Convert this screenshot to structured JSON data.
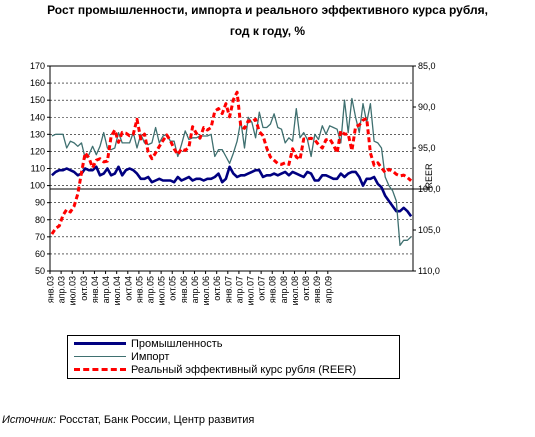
{
  "chart_data": {
    "type": "line",
    "title_line1": "Рост промышленности, импорта и реального эффективного курса рубля,",
    "title_line2": "год к году, %",
    "left_axis": {
      "min": 50,
      "max": 170,
      "ticks": [
        50,
        60,
        70,
        80,
        90,
        100,
        110,
        120,
        130,
        140,
        150,
        160,
        170
      ]
    },
    "right_axis": {
      "label": "REER",
      "min": 85,
      "max": 110,
      "reversed": true,
      "ticks": [
        "85,0",
        "90,0",
        "95,0",
        "100,0",
        "105,0",
        "110,0"
      ],
      "tick_values": [
        85,
        90,
        95,
        100,
        105,
        110
      ]
    },
    "x_labels": [
      "янв.03",
      "апр.03",
      "июл.03",
      "окт.03",
      "янв.04",
      "апр.04",
      "июл.04",
      "окт.04",
      "янв.05",
      "апр.05",
      "июл.05",
      "окт.05",
      "янв.06",
      "апр.06",
      "июл.06",
      "окт.06",
      "янв.07",
      "апр.07",
      "июл.07",
      "окт.07",
      "янв.08",
      "апр.08",
      "июл.08",
      "окт.08",
      "янв.09",
      "апр.09"
    ],
    "series": [
      {
        "name": "Промышленность",
        "color": "#000080",
        "axis": "left",
        "style": "solid",
        "values": [
          106,
          108,
          109,
          109,
          110,
          109,
          108,
          106,
          107,
          110,
          109,
          109,
          111,
          106,
          107,
          110,
          106,
          107,
          111,
          106,
          109,
          110,
          109,
          107,
          104,
          104,
          105,
          102,
          103,
          104,
          103,
          103,
          103,
          102,
          105,
          103,
          104,
          105,
          103,
          104,
          104,
          103,
          104,
          104,
          105,
          107,
          102,
          104,
          111,
          107,
          105,
          106,
          106,
          107,
          108,
          109,
          109,
          105,
          106,
          106,
          107,
          106,
          107,
          108,
          106,
          108,
          107,
          106,
          105,
          108,
          107,
          103,
          103,
          106,
          106,
          105,
          104,
          104,
          107,
          105,
          107,
          108,
          108,
          105,
          100,
          104,
          104,
          105,
          101,
          99,
          94,
          91,
          88,
          85,
          85,
          87,
          85,
          82
        ]
      },
      {
        "name": "Импорт",
        "color": "#3f7070",
        "axis": "left",
        "style": "solid",
        "values": [
          129,
          130,
          130,
          130,
          122,
          126,
          125,
          123,
          125,
          116,
          118,
          123,
          118,
          123,
          131,
          122,
          121,
          122,
          131,
          125,
          125,
          125,
          131,
          122,
          130,
          125,
          124,
          125,
          134,
          125,
          129,
          130,
          126,
          126,
          117,
          124,
          132,
          127,
          128,
          128,
          129,
          129,
          129,
          130,
          117,
          121,
          121,
          117,
          113,
          119,
          126,
          138,
          122,
          140,
          137,
          128,
          143,
          134,
          134,
          136,
          142,
          134,
          133,
          125,
          128,
          126,
          145,
          128,
          131,
          127,
          117,
          130,
          127,
          135,
          130,
          135,
          134,
          133,
          125,
          150,
          131,
          151,
          140,
          131,
          148,
          137,
          148,
          126,
          125,
          122,
          105,
          100,
          97,
          91,
          65,
          68,
          68,
          70
        ]
      },
      {
        "name": "Реальный эффективный курс рубля (REER)",
        "color": "#ff0000",
        "axis": "right",
        "style": "dashed",
        "values": [
          105.5,
          104.8,
          104.5,
          103.2,
          102.5,
          102.8,
          102.1,
          100.6,
          98,
          95.6,
          96.2,
          97.4,
          96.5,
          96.3,
          96.7,
          96.6,
          93.6,
          92.8,
          94.3,
          93.1,
          93.2,
          93.5,
          93.3,
          91.5,
          93.9,
          93.3,
          95.5,
          96.3,
          95.6,
          94.8,
          94.1,
          93.4,
          94.1,
          95.1,
          95.8,
          95.1,
          95.3,
          94.9,
          92.4,
          93.2,
          93.8,
          92.5,
          92.8,
          92.5,
          90.5,
          90.2,
          90.8,
          89.6,
          91.2,
          89.1,
          88.2,
          92.4,
          92.6,
          91.7,
          91.8,
          91.5,
          93,
          93.5,
          95,
          96.1,
          96.5,
          96.9,
          97,
          96.8,
          97,
          95.1,
          96.1,
          96.4,
          93.9,
          93.9,
          93.8,
          94,
          94.6,
          95,
          94,
          93.9,
          94.6,
          95.6,
          92.9,
          93.3,
          93.3,
          95.3,
          92.4,
          92.2,
          91.6,
          91.4,
          95.6,
          97.1,
          96.8,
          97.4,
          98,
          97.6,
          97.8,
          98.2,
          98.4,
          98.3,
          98.6,
          99
        ]
      }
    ],
    "legend_placement": "bottom",
    "grid": "horizontal-dashed",
    "source_label": "Источник:",
    "source_text": " Росстат, Банк России, Центр развития"
  }
}
